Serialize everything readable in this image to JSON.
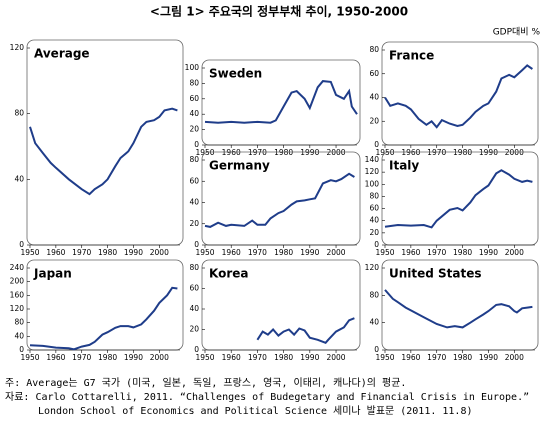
{
  "title": "<그림 1> 주요국의 정부부채 추이, 1950-2000",
  "unit_label": "GDP대비 %",
  "chart_data": [
    {
      "type": "line",
      "title": "Average",
      "color": "#1f3d8a",
      "xlim": [
        1950,
        2008
      ],
      "xticks": [
        1950,
        1960,
        1970,
        1980,
        1990,
        2000
      ],
      "ylim": [
        0,
        120
      ],
      "yticks": [
        0,
        40,
        80,
        120
      ],
      "x": [
        1950,
        1952,
        1955,
        1958,
        1960,
        1965,
        1970,
        1973,
        1975,
        1978,
        1980,
        1983,
        1985,
        1988,
        1990,
        1993,
        1995,
        1998,
        2000,
        2002,
        2005,
        2007
      ],
      "values": [
        72,
        62,
        56,
        50,
        47,
        40,
        34,
        31,
        34,
        37,
        40,
        48,
        53,
        57,
        62,
        72,
        75,
        76,
        78,
        82,
        83,
        82
      ]
    },
    {
      "type": "line",
      "title": "Sweden",
      "color": "#1f3d8a",
      "xlim": [
        1950,
        2008
      ],
      "xticks": [
        1950,
        1960,
        1970,
        1980,
        1990,
        2000
      ],
      "ylim": [
        0,
        100
      ],
      "yticks": [
        0,
        20,
        40,
        60,
        80,
        100
      ],
      "x": [
        1950,
        1955,
        1960,
        1965,
        1970,
        1975,
        1977,
        1980,
        1983,
        1985,
        1988,
        1990,
        1993,
        1995,
        1998,
        2000,
        2003,
        2005,
        2006,
        2008
      ],
      "values": [
        30,
        29,
        30,
        29,
        30,
        29,
        32,
        50,
        68,
        70,
        60,
        48,
        75,
        83,
        82,
        65,
        60,
        70,
        50,
        40
      ]
    },
    {
      "type": "line",
      "title": "France",
      "color": "#1f3d8a",
      "xlim": [
        1950,
        2008
      ],
      "xticks": [
        1950,
        1960,
        1970,
        1980,
        1990,
        2000
      ],
      "ylim": [
        0,
        80
      ],
      "yticks": [
        0,
        20,
        40,
        60,
        80
      ],
      "x": [
        1950,
        1952,
        1955,
        1958,
        1960,
        1963,
        1966,
        1968,
        1970,
        1972,
        1975,
        1978,
        1980,
        1983,
        1985,
        1988,
        1990,
        1993,
        1995,
        1998,
        2000,
        2003,
        2005,
        2007
      ],
      "values": [
        40,
        33,
        35,
        33,
        30,
        22,
        17,
        20,
        15,
        21,
        18,
        16,
        17,
        23,
        28,
        33,
        35,
        45,
        56,
        59,
        57,
        63,
        67,
        64
      ]
    },
    {
      "type": "line",
      "title": "Germany",
      "color": "#1f3d8a",
      "xlim": [
        1950,
        2008
      ],
      "xticks": [
        1950,
        1960,
        1970,
        1980,
        1990,
        2000
      ],
      "ylim": [
        0,
        80
      ],
      "yticks": [
        0,
        20,
        40,
        60,
        80
      ],
      "x": [
        1950,
        1952,
        1955,
        1958,
        1960,
        1965,
        1968,
        1970,
        1973,
        1975,
        1978,
        1980,
        1983,
        1985,
        1988,
        1990,
        1992,
        1995,
        1998,
        2000,
        2002,
        2005,
        2007
      ],
      "values": [
        18,
        17,
        21,
        18,
        19,
        18,
        23,
        19,
        19,
        25,
        30,
        32,
        38,
        41,
        42,
        43,
        44,
        58,
        61,
        60,
        62,
        67,
        64
      ]
    },
    {
      "type": "line",
      "title": "Italy",
      "color": "#1f3d8a",
      "xlim": [
        1950,
        2008
      ],
      "xticks": [
        1950,
        1960,
        1970,
        1980,
        1990,
        2000
      ],
      "ylim": [
        0,
        140
      ],
      "yticks": [
        0,
        20,
        40,
        60,
        80,
        100,
        120,
        140
      ],
      "x": [
        1950,
        1955,
        1960,
        1965,
        1968,
        1970,
        1975,
        1978,
        1980,
        1983,
        1985,
        1988,
        1990,
        1993,
        1995,
        1998,
        2000,
        2003,
        2005,
        2007
      ],
      "values": [
        30,
        33,
        32,
        33,
        29,
        40,
        58,
        61,
        57,
        70,
        82,
        92,
        98,
        118,
        123,
        116,
        109,
        104,
        106,
        104
      ]
    },
    {
      "type": "line",
      "title": "Japan",
      "color": "#1f3d8a",
      "xlim": [
        1950,
        2008
      ],
      "xticks": [
        1950,
        1960,
        1970,
        1980,
        1990,
        2000
      ],
      "ylim": [
        0,
        240
      ],
      "yticks": [
        0,
        40,
        80,
        120,
        160,
        200,
        240
      ],
      "x": [
        1950,
        1955,
        1960,
        1965,
        1967,
        1970,
        1973,
        1975,
        1978,
        1980,
        1983,
        1985,
        1988,
        1990,
        1993,
        1995,
        1998,
        2000,
        2003,
        2005,
        2007
      ],
      "values": [
        14,
        12,
        7,
        5,
        2,
        10,
        15,
        24,
        45,
        52,
        65,
        70,
        70,
        66,
        75,
        90,
        115,
        138,
        160,
        182,
        180
      ]
    },
    {
      "type": "line",
      "title": "Korea",
      "color": "#1f3d8a",
      "xlim": [
        1950,
        2008
      ],
      "xticks": [
        1950,
        1960,
        1970,
        1980,
        1990,
        2000
      ],
      "ylim": [
        0,
        80
      ],
      "yticks": [
        0,
        20,
        40,
        60,
        80
      ],
      "x": [
        1970,
        1972,
        1974,
        1976,
        1978,
        1980,
        1982,
        1984,
        1986,
        1988,
        1990,
        1993,
        1996,
        1997,
        2000,
        2003,
        2005,
        2007
      ],
      "values": [
        10,
        18,
        15,
        20,
        14,
        18,
        20,
        15,
        21,
        19,
        12,
        10,
        7,
        10,
        18,
        22,
        29,
        31
      ]
    },
    {
      "type": "line",
      "title": "United States",
      "color": "#1f3d8a",
      "xlim": [
        1950,
        2008
      ],
      "xticks": [
        1950,
        1960,
        1970,
        1980,
        1990,
        2000
      ],
      "ylim": [
        0,
        120
      ],
      "yticks": [
        0,
        40,
        80,
        120
      ],
      "x": [
        1950,
        1953,
        1955,
        1958,
        1960,
        1965,
        1970,
        1974,
        1977,
        1980,
        1983,
        1985,
        1988,
        1990,
        1993,
        1995,
        1998,
        2000,
        2001,
        2003,
        2005,
        2007
      ],
      "values": [
        88,
        75,
        70,
        62,
        58,
        48,
        38,
        33,
        35,
        33,
        40,
        45,
        52,
        57,
        66,
        67,
        64,
        57,
        55,
        61,
        62,
        63
      ]
    }
  ],
  "notes": [
    "주: Average는 G7 국가 (미국, 일본, 독일, 프랑스, 영국, 이태리, 캐나다)의 평균.",
    "자료: Carlo Cottarelli, 2011. “Challenges of Budegetary and Financial Crisis in Europe.”",
    "London School of Economics and Political Science 세미나 발표문 (2011. 11.8)"
  ]
}
